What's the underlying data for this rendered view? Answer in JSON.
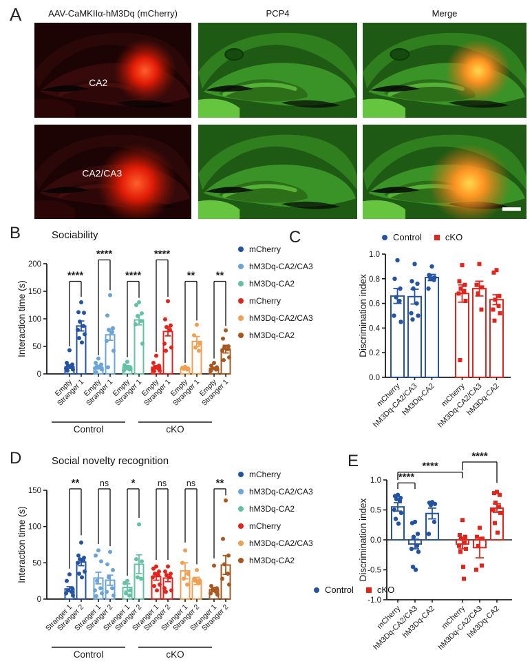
{
  "panel_a": {
    "label": "A",
    "column_titles": [
      "AAV-CaMKIIα-hM3Dq (mCherry)",
      "PCP4",
      "Merge"
    ],
    "rows": [
      {
        "label": "CA2"
      },
      {
        "label": "CA2/CA3"
      }
    ],
    "colors": {
      "mcherry_red": "#e11c06",
      "pcp4_green": "#3a9326",
      "overlap_orange": "#ff9422"
    },
    "scalebar_present": true
  },
  "chart_data": [
    {
      "id": "B",
      "panel_label": "B",
      "type": "bar",
      "title": "Sociability",
      "ylabel": "Interaction time (s)",
      "ylim": [
        0,
        200
      ],
      "yticks": [
        "0",
        "50",
        "100",
        "150",
        "200"
      ],
      "pair_labels": [
        "Empty",
        "Stranger 1"
      ],
      "group_labels": [
        "Control",
        "cKO"
      ],
      "legend": [
        {
          "label": "mCherry",
          "color": "#2353a2"
        },
        {
          "label": "hM3Dq-CA2/CA3",
          "color": "#6aa4d9"
        },
        {
          "label": "hM3Dq-CA2",
          "color": "#63c2a3"
        },
        {
          "label": "mCherry",
          "color": "#e5231b"
        },
        {
          "label": "hM3Dq-CA2/CA3",
          "color": "#f0a050"
        },
        {
          "label": "hM3Dq-CA2",
          "color": "#a8581e"
        }
      ],
      "pairs": [
        {
          "series": "mCherry",
          "group": "Control",
          "color": "#2353a2",
          "means": [
            13,
            87
          ],
          "sems": [
            3,
            9
          ],
          "points": [
            [
              43,
              20,
              17,
              15,
              13,
              10,
              8,
              6
            ],
            [
              130,
              112,
              111,
              95,
              87,
              80,
              72,
              65,
              57
            ]
          ],
          "sig": {
            "label": "****",
            "y": 168,
            "d1": 50,
            "d2": 140
          }
        },
        {
          "series": "hM3Dq-CA2/CA3",
          "group": "Control",
          "color": "#6aa4d9",
          "means": [
            12,
            71
          ],
          "sems": [
            3,
            10
          ],
          "points": [
            [
              28,
              20,
              17,
              14,
              12,
              10,
              8,
              3
            ],
            [
              143,
              106,
              83,
              80,
              76,
              60,
              42,
              12
            ]
          ],
          "sig": {
            "label": "****",
            "y": 207,
            "d1": 34,
            "d2": 152
          }
        },
        {
          "series": "hM3Dq-CA2",
          "group": "Control",
          "color": "#63c2a3",
          "means": [
            12,
            98
          ],
          "sems": [
            3,
            9
          ],
          "points": [
            [
              22,
              16,
              12,
              10,
              8,
              6
            ],
            [
              130,
              125,
              110,
              105,
              96,
              90,
              55
            ]
          ],
          "sig": {
            "label": "****",
            "y": 168,
            "d1": 30,
            "d2": 138
          }
        },
        {
          "series": "mCherry",
          "group": "cKO",
          "color": "#e5231b",
          "means": [
            12,
            77
          ],
          "sems": [
            3,
            8
          ],
          "points": [
            [
              33,
              20,
              15,
              12,
              10,
              8,
              6,
              5
            ],
            [
              132,
              99,
              88,
              85,
              80,
              55,
              48,
              42
            ]
          ],
          "sig": {
            "label": "****",
            "y": 207,
            "d1": 40,
            "d2": 140
          }
        },
        {
          "series": "hM3Dq-CA2/CA3",
          "group": "cKO",
          "color": "#f0a050",
          "means": [
            10,
            59
          ],
          "sems": [
            2,
            9
          ],
          "points": [
            [
              13,
              11,
              10,
              9,
              8
            ],
            [
              89,
              70,
              55,
              48,
              42
            ]
          ],
          "sig": {
            "label": "**",
            "y": 168,
            "d1": 20,
            "d2": 97
          }
        },
        {
          "series": "hM3Dq-CA2",
          "group": "cKO",
          "color": "#a8581e",
          "means": [
            10,
            45
          ],
          "sems": [
            2,
            7
          ],
          "points": [
            [
              20,
              15,
              12,
              10,
              8,
              5
            ],
            [
              79,
              64,
              50,
              48,
              45,
              42,
              30,
              25
            ]
          ],
          "sig": {
            "label": "**",
            "y": 168,
            "d1": 28,
            "d2": 87
          }
        }
      ]
    },
    {
      "id": "C",
      "panel_label": "C",
      "type": "bar",
      "ylabel": "Discrimination index",
      "ylim": [
        0,
        1
      ],
      "yticks": [
        "0.0",
        "0.2",
        "0.4",
        "0.6",
        "0.8",
        "1.0"
      ],
      "legend": [
        {
          "label": "Control",
          "color": "#2353a2",
          "marker": "circle"
        },
        {
          "label": "cKO",
          "color": "#e5231b",
          "marker": "square"
        }
      ],
      "bars": [
        {
          "label": "mCherry",
          "group": "Control",
          "color": "#2353a2",
          "marker": "circle",
          "mean": 0.66,
          "sem": 0.06,
          "points": [
            0.95,
            0.8,
            0.72,
            0.65,
            0.62,
            0.5,
            0.45
          ]
        },
        {
          "label": "hM3Dq-CA2/CA3",
          "group": "Control",
          "color": "#2353a2",
          "marker": "circle",
          "mean": 0.655,
          "sem": 0.06,
          "points": [
            0.92,
            0.78,
            0.76,
            0.72,
            0.6,
            0.52,
            0.5,
            0.47
          ]
        },
        {
          "label": "hM3Dq-CA2",
          "group": "Control",
          "color": "#2353a2",
          "marker": "circle",
          "mean": 0.81,
          "sem": 0.025,
          "points": [
            0.9,
            0.83,
            0.81,
            0.8,
            0.79,
            0.72
          ]
        },
        {
          "label": "mCherry",
          "group": "cKO",
          "color": "#e5231b",
          "marker": "square",
          "mean": 0.68,
          "sem": 0.07,
          "points": [
            0.91,
            0.78,
            0.75,
            0.72,
            0.7,
            0.68,
            0.62,
            0.14
          ]
        },
        {
          "label": "hM3Dq-CA2/CA3",
          "group": "cKO",
          "color": "#e5231b",
          "marker": "square",
          "mean": 0.72,
          "sem": 0.06,
          "points": [
            0.92,
            0.75,
            0.73,
            0.68,
            0.55
          ]
        },
        {
          "label": "hM3Dq-CA2",
          "group": "cKO",
          "color": "#e5231b",
          "marker": "square",
          "mean": 0.63,
          "sem": 0.04,
          "points": [
            0.87,
            0.85,
            0.66,
            0.63,
            0.58,
            0.55,
            0.52,
            0.46
          ]
        }
      ],
      "sig": []
    },
    {
      "id": "D",
      "panel_label": "D",
      "type": "bar",
      "title": "Social novelty recognition",
      "ylabel": "Interaction time (s)",
      "ylim": [
        0,
        150
      ],
      "yticks": [
        "0",
        "50",
        "100",
        "150"
      ],
      "pair_labels": [
        "Stranger 1",
        "Stranger 2"
      ],
      "group_labels": [
        "Control",
        "cKO"
      ],
      "legend": [
        {
          "label": "mCherry",
          "color": "#2353a2"
        },
        {
          "label": "hM3Dq-CA2/CA3",
          "color": "#6aa4d9"
        },
        {
          "label": "hM3Dq-CA2",
          "color": "#63c2a3"
        },
        {
          "label": "mCherry",
          "color": "#e5231b"
        },
        {
          "label": "hM3Dq-CA2/CA3",
          "color": "#f0a050"
        },
        {
          "label": "hM3Dq-CA2",
          "color": "#a8581e"
        }
      ],
      "pairs": [
        {
          "series": "mCherry",
          "group": "Control",
          "color": "#2353a2",
          "means": [
            14,
            51
          ],
          "sems": [
            3,
            5
          ],
          "points": [
            [
              34,
              25,
              15,
              12,
              10,
              8,
              5
            ],
            [
              78,
              60,
              57,
              55,
              53,
              50,
              38,
              35,
              30
            ]
          ],
          "sig": {
            "label": "**",
            "y": 152,
            "d1": 42,
            "d2": 88
          }
        },
        {
          "series": "hM3Dq-CA2/CA3",
          "group": "Control",
          "color": "#6aa4d9",
          "means": [
            29,
            26
          ],
          "sems": [
            8,
            7
          ],
          "points": [
            [
              67,
              60,
              52,
              25,
              15,
              12,
              8,
              4
            ],
            [
              65,
              48,
              40,
              30,
              15,
              10,
              5
            ]
          ],
          "sig": {
            "label": "ns",
            "y": 152,
            "d1": 76,
            "d2": 73
          }
        },
        {
          "series": "hM3Dq-CA2",
          "group": "Control",
          "color": "#63c2a3",
          "means": [
            16,
            48
          ],
          "sems": [
            5,
            13
          ],
          "points": [
            [
              25,
              22,
              12,
              8,
              5
            ],
            [
              103,
              55,
              52,
              30,
              28
            ]
          ],
          "sig": {
            "label": "*",
            "y": 152,
            "d1": 32,
            "d2": 112
          }
        },
        {
          "series": "mCherry",
          "group": "cKO",
          "color": "#e5231b",
          "means": [
            31,
            29
          ],
          "sems": [
            5,
            5
          ],
          "points": [
            [
              45,
              42,
              38,
              35,
              33,
              30,
              20,
              18,
              12
            ],
            [
              45,
              38,
              35,
              33,
              30,
              15,
              12,
              10
            ]
          ],
          "sig": {
            "label": "ns",
            "y": 152,
            "d1": 54,
            "d2": 54
          }
        },
        {
          "series": "hM3Dq-CA2/CA3",
          "group": "cKO",
          "color": "#f0a050",
          "means": [
            39,
            25
          ],
          "sems": [
            11,
            5
          ],
          "points": [
            [
              67,
              50,
              35,
              28,
              20
            ],
            [
              40,
              28,
              26,
              25,
              22
            ]
          ],
          "sig": {
            "label": "ns",
            "y": 152,
            "d1": 78,
            "d2": 48
          }
        },
        {
          "series": "hM3Dq-CA2",
          "group": "cKO",
          "color": "#a8581e",
          "means": [
            13,
            47
          ],
          "sems": [
            3,
            13
          ],
          "points": [
            [
              46,
              18,
              15,
              13,
              10,
              8,
              6
            ],
            [
              136,
              83,
              60,
              48,
              35,
              28,
              20
            ]
          ],
          "sig": {
            "label": "**",
            "y": 152,
            "d1": 56,
            "d2": 143
          }
        }
      ]
    },
    {
      "id": "E",
      "panel_label": "E",
      "type": "bar",
      "ylabel": "Discrimination index",
      "ylim": [
        -1,
        1
      ],
      "yticks": [
        "-1.0",
        "-0.5",
        "0.0",
        "0.5",
        "1.0"
      ],
      "legend": [
        {
          "label": "Control",
          "color": "#2353a2",
          "marker": "circle"
        },
        {
          "label": "cKO",
          "color": "#e5231b",
          "marker": "square"
        }
      ],
      "bars": [
        {
          "label": "mCherry",
          "group": "Control",
          "color": "#2353a2",
          "marker": "circle",
          "mean": 0.55,
          "sem": 0.07,
          "points": [
            0.75,
            0.73,
            0.7,
            0.68,
            0.65,
            0.5,
            0.45,
            0.35,
            0.27
          ]
        },
        {
          "label": "hM3Dq-CA2/CA3",
          "group": "Control",
          "color": "#2353a2",
          "marker": "circle",
          "mean": -0.07,
          "sem": 0.08,
          "points": [
            0.3,
            0.28,
            0.1,
            0.05,
            -0.1,
            -0.15,
            -0.2,
            -0.45,
            -0.5
          ]
        },
        {
          "label": "hM3Dq-CA2",
          "group": "Control",
          "color": "#2353a2",
          "marker": "circle",
          "mean": 0.44,
          "sem": 0.09,
          "points": [
            0.63,
            0.62,
            0.6,
            0.58,
            0.3,
            0.1
          ]
        },
        {
          "label": "mCherry",
          "group": "cKO",
          "color": "#e5231b",
          "marker": "square",
          "mean": -0.07,
          "sem": 0.08,
          "points": [
            0.33,
            0.08,
            0.05,
            0.02,
            -0.05,
            -0.1,
            -0.15,
            -0.2,
            -0.45,
            -0.65
          ]
        },
        {
          "label": "hM3Dq-CA2/CA3",
          "group": "cKO",
          "color": "#e5231b",
          "marker": "square",
          "mean": -0.13,
          "sem": 0.17,
          "points": [
            0.2,
            0.05,
            0.02,
            -0.1,
            -0.43,
            -0.5
          ]
        },
        {
          "label": "hM3Dq-CA2",
          "group": "cKO",
          "color": "#e5231b",
          "marker": "square",
          "mean": 0.53,
          "sem": 0.07,
          "points": [
            0.8,
            0.78,
            0.75,
            0.62,
            0.55,
            0.5,
            0.45,
            0.28,
            0.12
          ]
        }
      ],
      "sig": [
        {
          "label": "****",
          "from": 0,
          "to": 1,
          "y": 0.95,
          "d1": 0.85,
          "d2": 0.85
        },
        {
          "label": "****",
          "from": 0,
          "to": 3,
          "y": 1.13,
          "d1": 1.0,
          "d2": 1.03
        },
        {
          "label": "****",
          "from": 3,
          "to": 5,
          "y": 1.3,
          "d1": 1.16,
          "d2": 0.95
        }
      ]
    }
  ]
}
